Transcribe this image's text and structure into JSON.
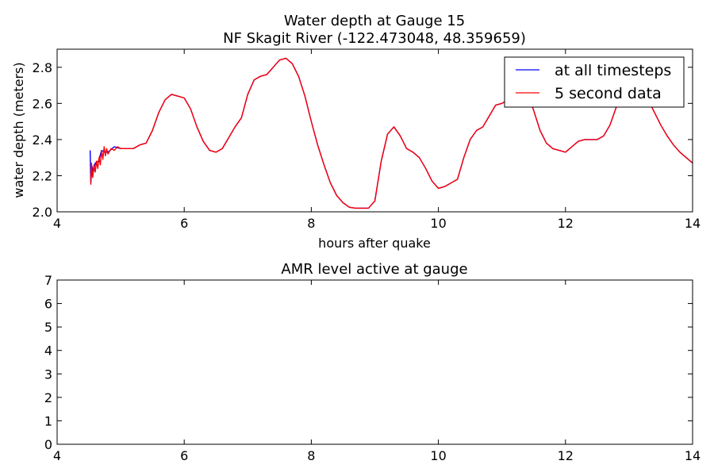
{
  "chart_data": [
    {
      "type": "line",
      "title_line1": "Water depth at Gauge 15",
      "title_line2": "NF Skagit River  (-122.473048, 48.359659)",
      "xlabel": "hours after quake",
      "ylabel": "water depth (meters)",
      "xlim": [
        4,
        14
      ],
      "ylim": [
        2.0,
        2.9
      ],
      "xticks": [
        "4",
        "6",
        "8",
        "10",
        "12",
        "14"
      ],
      "yticks": [
        "2.0",
        "2.2",
        "2.4",
        "2.6",
        "2.8"
      ],
      "grid": false,
      "legend_position": "top-right",
      "series": [
        {
          "name": "at all timesteps",
          "color": "#0000ff",
          "x": [
            4.52,
            4.53,
            4.55,
            4.57,
            4.6,
            4.65,
            4.7,
            4.75,
            4.8,
            4.9,
            5.0,
            5.1,
            5.2,
            5.3,
            5.4,
            5.5,
            5.6,
            5.7,
            5.8,
            5.9,
            6.0,
            6.1,
            6.2,
            6.3,
            6.4,
            6.5,
            6.6,
            6.7,
            6.8,
            6.9,
            7.0,
            7.1,
            7.2,
            7.3,
            7.4,
            7.5,
            7.6,
            7.7,
            7.8,
            7.9,
            8.0,
            8.1,
            8.2,
            8.3,
            8.4,
            8.5,
            8.6,
            8.7,
            8.8,
            8.9,
            9.0,
            9.1,
            9.2,
            9.3,
            9.4,
            9.5,
            9.6,
            9.7,
            9.8,
            9.9,
            10.0,
            10.1,
            10.2,
            10.3,
            10.4,
            10.5,
            10.6,
            10.7,
            10.8,
            10.9,
            11.0,
            11.1,
            11.2,
            11.3,
            11.4,
            11.5,
            11.6,
            11.7,
            11.8,
            11.9,
            12.0,
            12.1,
            12.2,
            12.3,
            12.4,
            12.5,
            12.6,
            12.7,
            12.8,
            12.9,
            13.0,
            13.1,
            13.2,
            13.3,
            13.4,
            13.5,
            13.6,
            13.7,
            13.8,
            13.9,
            14.0
          ],
          "y": [
            2.34,
            2.16,
            2.25,
            2.22,
            2.27,
            2.28,
            2.34,
            2.33,
            2.33,
            2.36,
            2.35,
            2.35,
            2.35,
            2.37,
            2.38,
            2.45,
            2.55,
            2.62,
            2.65,
            2.64,
            2.63,
            2.57,
            2.47,
            2.39,
            2.34,
            2.33,
            2.35,
            2.41,
            2.47,
            2.52,
            2.65,
            2.73,
            2.75,
            2.76,
            2.8,
            2.84,
            2.85,
            2.82,
            2.75,
            2.64,
            2.5,
            2.37,
            2.26,
            2.16,
            2.09,
            2.05,
            2.025,
            2.02,
            2.02,
            2.02,
            2.06,
            2.28,
            2.43,
            2.47,
            2.42,
            2.35,
            2.33,
            2.3,
            2.24,
            2.17,
            2.13,
            2.14,
            2.16,
            2.18,
            2.3,
            2.4,
            2.45,
            2.47,
            2.53,
            2.59,
            2.6,
            2.62,
            2.69,
            2.7,
            2.66,
            2.56,
            2.45,
            2.38,
            2.35,
            2.34,
            2.33,
            2.36,
            2.39,
            2.4,
            2.4,
            2.4,
            2.42,
            2.48,
            2.58,
            2.66,
            2.7,
            2.7,
            2.68,
            2.62,
            2.55,
            2.48,
            2.42,
            2.37,
            2.33,
            2.3,
            2.27
          ]
        },
        {
          "name": "5 second data",
          "color": "#ff0000",
          "x": [
            4.53,
            4.54,
            4.56,
            4.58,
            4.6,
            4.62,
            4.64,
            4.66,
            4.68,
            4.7,
            4.72,
            4.74,
            4.76,
            4.78,
            4.8,
            4.85,
            4.9,
            4.95,
            5.0,
            5.1,
            5.2,
            5.3,
            5.4,
            5.5,
            5.6,
            5.7,
            5.8,
            5.9,
            6.0,
            6.1,
            6.2,
            6.3,
            6.4,
            6.5,
            6.6,
            6.7,
            6.8,
            6.9,
            7.0,
            7.1,
            7.2,
            7.3,
            7.4,
            7.5,
            7.6,
            7.7,
            7.8,
            7.9,
            8.0,
            8.1,
            8.2,
            8.3,
            8.4,
            8.5,
            8.6,
            8.7,
            8.8,
            8.9,
            9.0,
            9.1,
            9.2,
            9.3,
            9.4,
            9.5,
            9.6,
            9.7,
            9.8,
            9.9,
            10.0,
            10.1,
            10.2,
            10.3,
            10.4,
            10.5,
            10.6,
            10.7,
            10.8,
            10.9,
            11.0,
            11.1,
            11.2,
            11.3,
            11.4,
            11.5,
            11.6,
            11.7,
            11.8,
            11.9,
            12.0,
            12.1,
            12.2,
            12.3,
            12.4,
            12.5,
            12.6,
            12.7,
            12.8,
            12.9,
            13.0,
            13.1,
            13.2,
            13.3,
            13.4,
            13.5,
            13.6,
            13.7,
            13.8,
            13.9,
            14.0
          ],
          "y": [
            2.15,
            2.27,
            2.19,
            2.26,
            2.22,
            2.28,
            2.24,
            2.3,
            2.26,
            2.34,
            2.29,
            2.36,
            2.31,
            2.35,
            2.32,
            2.35,
            2.34,
            2.36,
            2.35,
            2.35,
            2.35,
            2.37,
            2.38,
            2.45,
            2.55,
            2.62,
            2.65,
            2.64,
            2.63,
            2.57,
            2.47,
            2.39,
            2.34,
            2.33,
            2.35,
            2.41,
            2.47,
            2.52,
            2.65,
            2.73,
            2.75,
            2.76,
            2.8,
            2.84,
            2.85,
            2.82,
            2.75,
            2.64,
            2.5,
            2.37,
            2.26,
            2.16,
            2.09,
            2.05,
            2.025,
            2.02,
            2.02,
            2.02,
            2.06,
            2.28,
            2.43,
            2.47,
            2.42,
            2.35,
            2.33,
            2.3,
            2.24,
            2.17,
            2.13,
            2.14,
            2.16,
            2.18,
            2.3,
            2.4,
            2.45,
            2.47,
            2.53,
            2.59,
            2.6,
            2.62,
            2.69,
            2.7,
            2.66,
            2.56,
            2.45,
            2.38,
            2.35,
            2.34,
            2.33,
            2.36,
            2.39,
            2.4,
            2.4,
            2.4,
            2.42,
            2.48,
            2.58,
            2.66,
            2.7,
            2.7,
            2.68,
            2.62,
            2.55,
            2.48,
            2.42,
            2.37,
            2.33,
            2.3,
            2.27
          ]
        }
      ]
    },
    {
      "type": "line",
      "title": "AMR level active at gauge",
      "xlim": [
        4,
        14
      ],
      "ylim": [
        0,
        7
      ],
      "xticks": [
        "4",
        "6",
        "8",
        "10",
        "12",
        "14"
      ],
      "yticks": [
        "0",
        "1",
        "2",
        "3",
        "4",
        "5",
        "6",
        "7"
      ],
      "grid": false,
      "series": []
    }
  ]
}
